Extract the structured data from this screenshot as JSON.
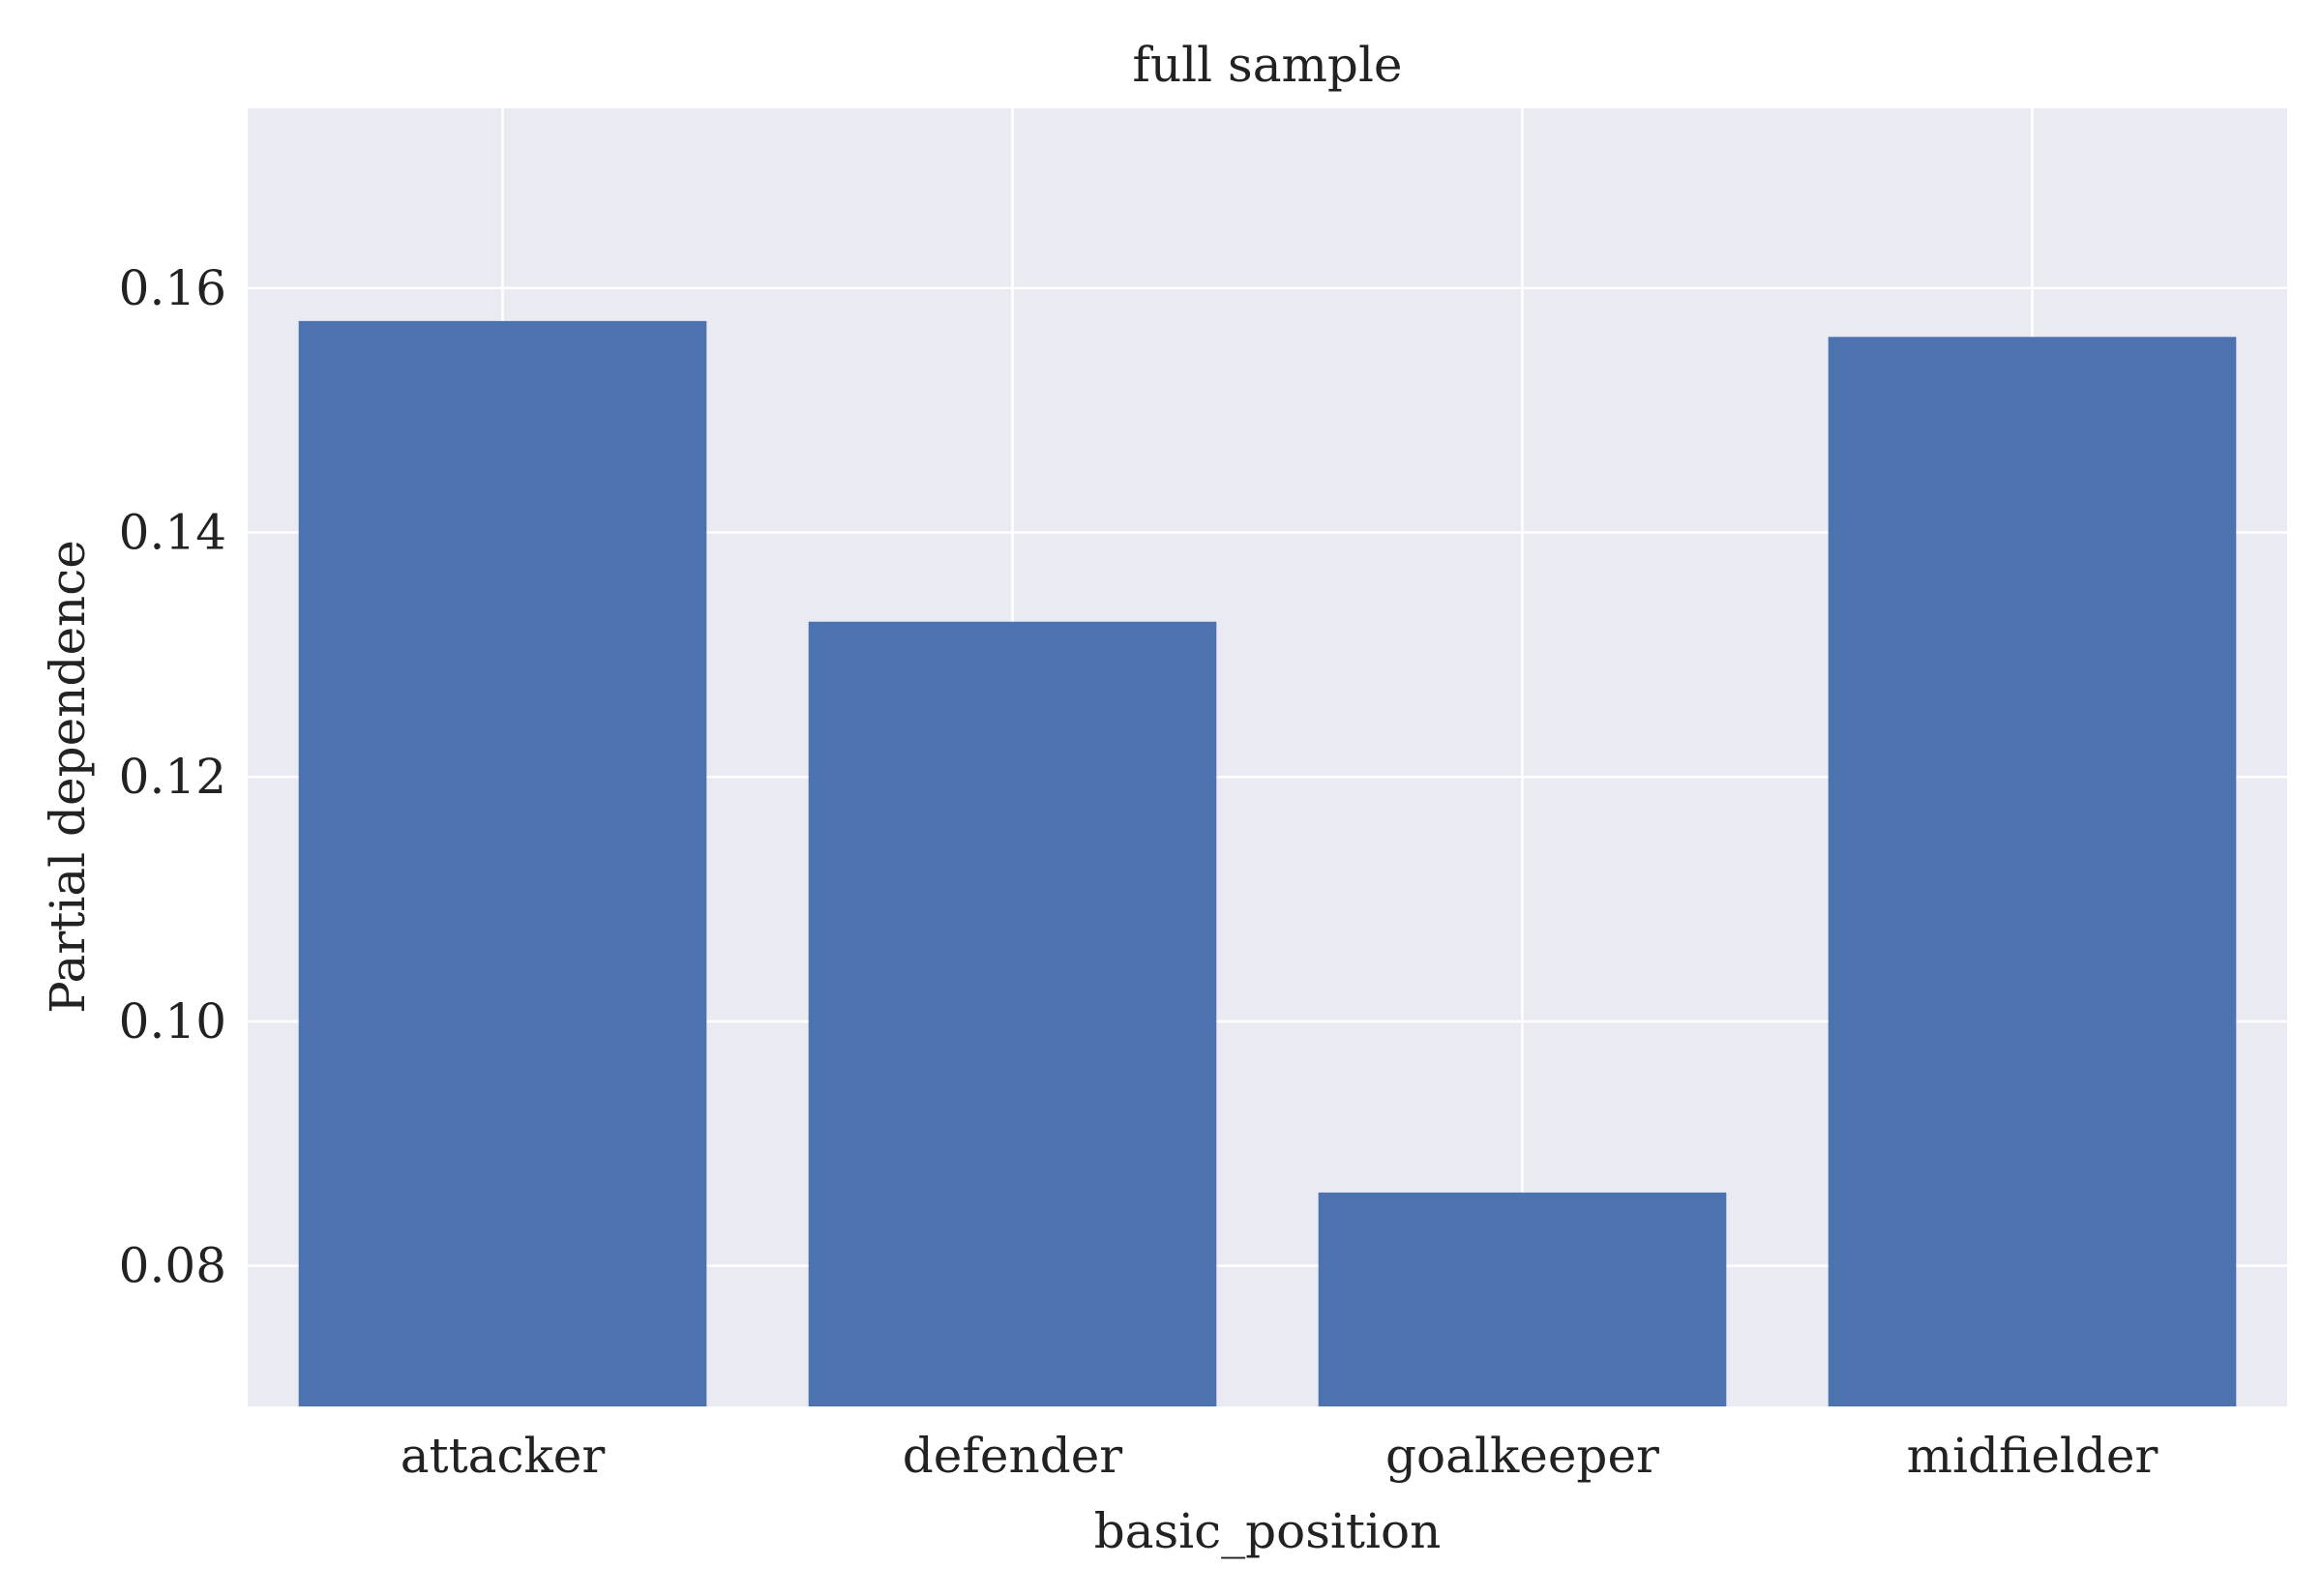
{
  "chart_data": {
    "type": "bar",
    "title": "full sample",
    "xlabel": "basic_position",
    "ylabel": "Partial dependence",
    "categories": [
      "attacker",
      "defender",
      "goalkeeper",
      "midfielder"
    ],
    "values": [
      0.1573,
      0.1327,
      0.086,
      0.156
    ],
    "ylim": [
      0.0685,
      0.1747
    ],
    "yticks": [
      0.08,
      0.1,
      0.12,
      0.14,
      0.16
    ],
    "ytick_labels": [
      "0.08",
      "0.10",
      "0.12",
      "0.14",
      "0.16"
    ],
    "grid": true,
    "colors": {
      "bar": "#4c72b0",
      "plot_background": "#eaeaf2",
      "grid": "#ffffff",
      "text": "#222222"
    }
  }
}
